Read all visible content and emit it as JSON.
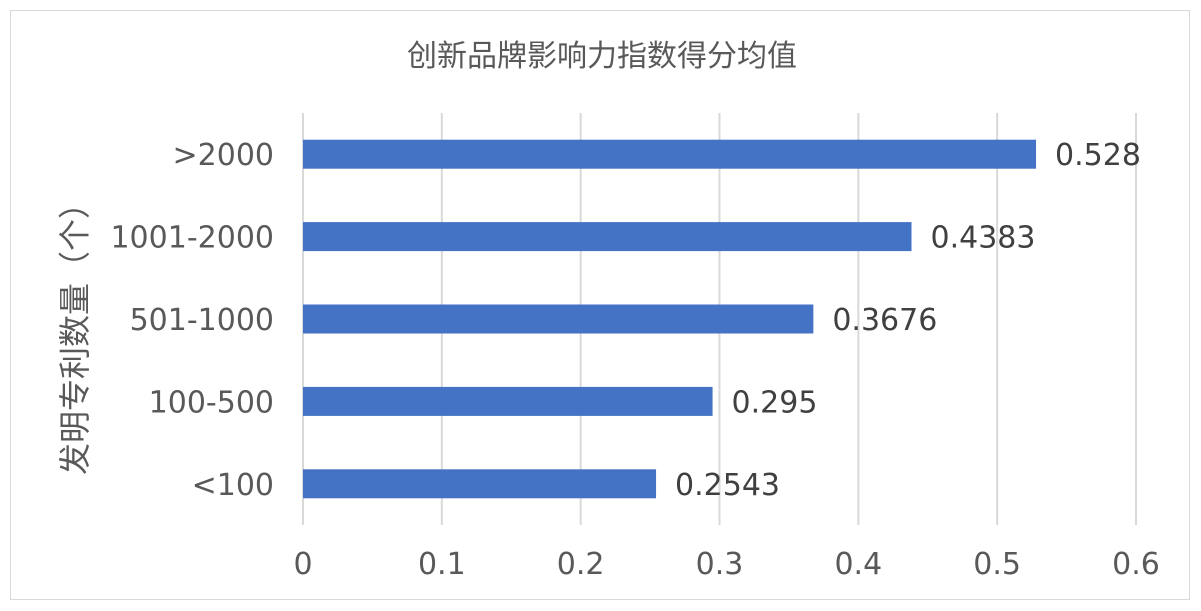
{
  "chart_data": {
    "type": "bar",
    "orientation": "horizontal",
    "title": "创新品牌影响力指数得分均值",
    "ylabel": "发明专利数量（个）",
    "xlabel": "",
    "categories": [
      ">2000",
      "1001-2000",
      "501-1000",
      "100-500",
      "<100"
    ],
    "values": [
      0.528,
      0.4383,
      0.3676,
      0.295,
      0.2543
    ],
    "value_labels": [
      "0.528",
      "0.4383",
      "0.3676",
      "0.295",
      "0.2543"
    ],
    "xlim": [
      0,
      0.6
    ],
    "xticks": [
      "0",
      "0.1",
      "0.2",
      "0.3",
      "0.4",
      "0.5",
      "0.6"
    ],
    "grid": true,
    "legend": "none",
    "bar_color": "#4472c4"
  }
}
